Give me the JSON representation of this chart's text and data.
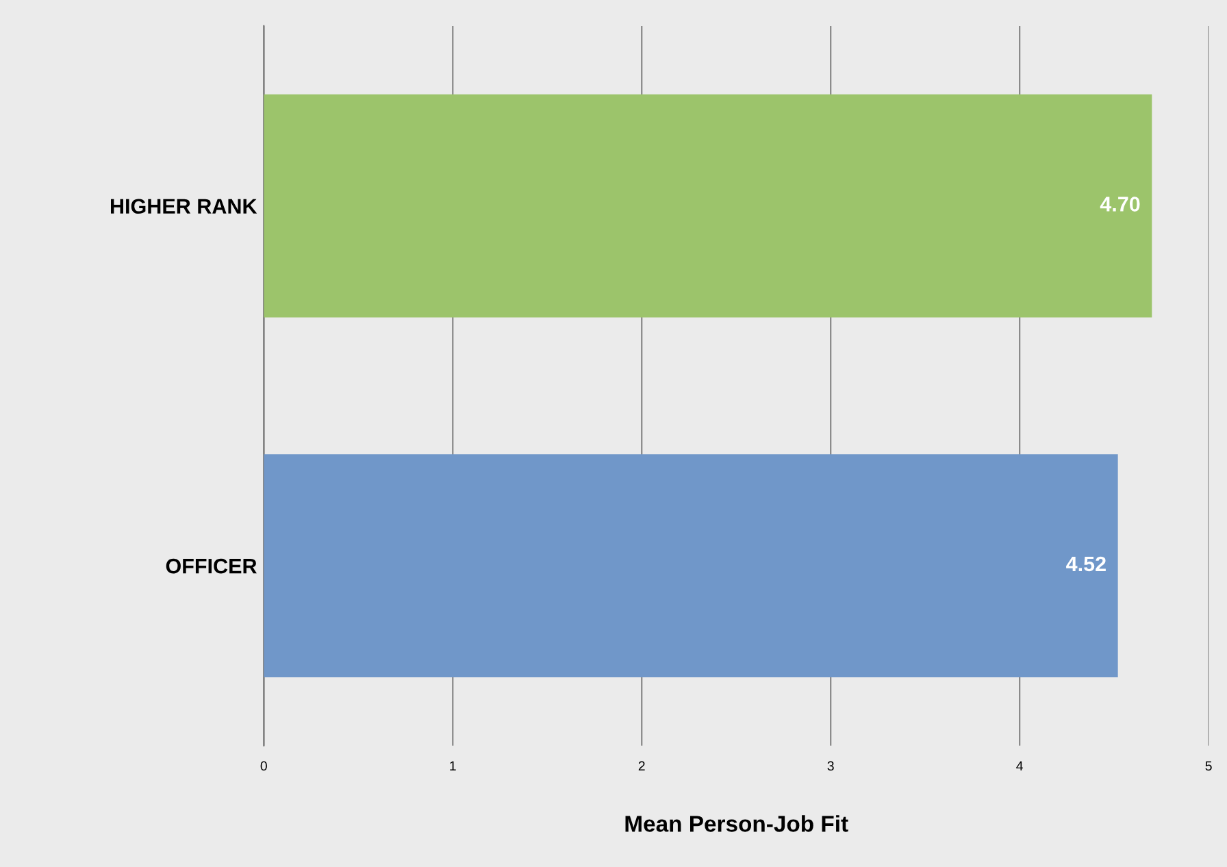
{
  "chart_data": {
    "type": "bar",
    "orientation": "horizontal",
    "categories": [
      "HIGHER RANK",
      "OFFICER"
    ],
    "values": [
      4.7,
      4.52
    ],
    "value_labels": [
      "4.70",
      "4.52"
    ],
    "colors": [
      "#9cc46b",
      "#7097c9"
    ],
    "xlabel": "Mean Person-Job Fit",
    "xlim": [
      0,
      5
    ],
    "xticks": [
      0,
      1,
      2,
      3,
      4,
      5
    ],
    "grid": "x"
  }
}
